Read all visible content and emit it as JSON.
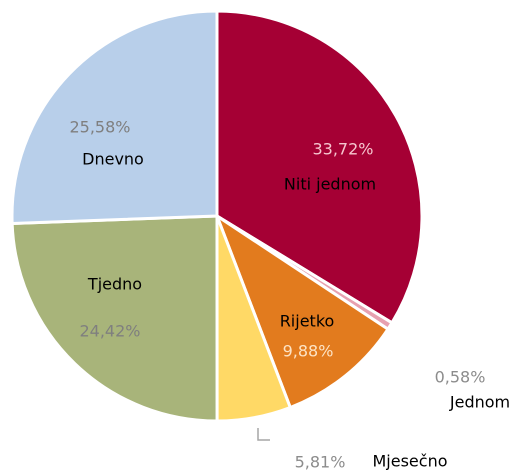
{
  "chart_data": {
    "type": "pie",
    "categories": [
      "Niti jednom",
      "Jednom",
      "Rijetko",
      "Mjesečno",
      "Tjedno",
      "Dnevno"
    ],
    "values": [
      33.72,
      0.58,
      9.88,
      5.81,
      24.42,
      25.58
    ],
    "value_labels": [
      "33,72%",
      "0,58%",
      "9,88%",
      "5,81%",
      "24,42%",
      "25,58%"
    ],
    "colors": [
      "#a50034",
      "#e7a1b0",
      "#e27b1e",
      "#ffd966",
      "#a8b47a",
      "#b8cfea"
    ]
  }
}
